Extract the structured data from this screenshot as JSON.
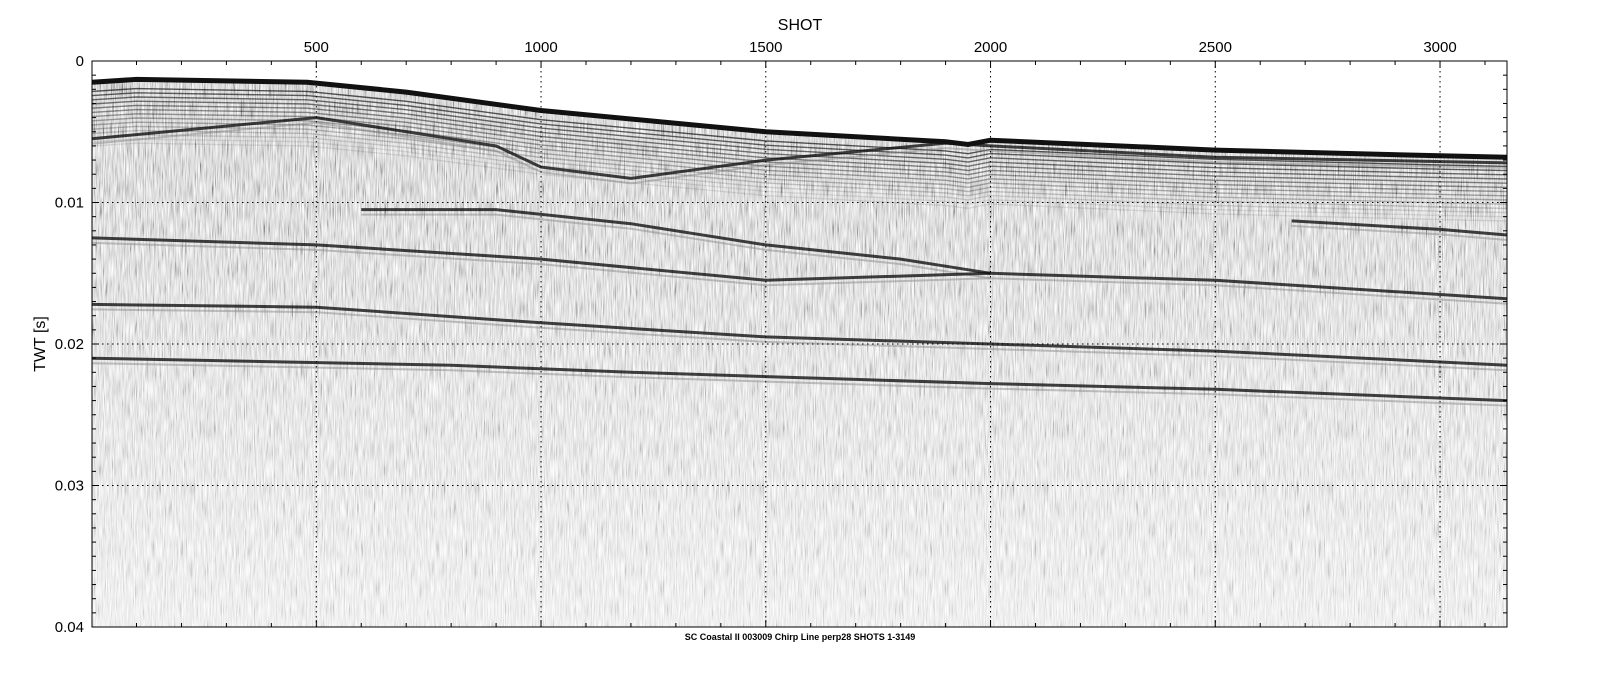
{
  "chart_data": {
    "type": "heatmap",
    "title": "",
    "xlabel": "SHOT",
    "ylabel": "TWT [s]",
    "caption": "SC Coastal II 003009 Chirp Line perp28 SHOTS 1-3149",
    "xlim": [
      1,
      3149
    ],
    "ylim": [
      0.04,
      0
    ],
    "x_ticks": [
      500,
      1000,
      1500,
      2000,
      2500,
      3000
    ],
    "x_tick_labels": [
      "500",
      "1000",
      "1500",
      "2000",
      "2500",
      "3000"
    ],
    "y_ticks": [
      0,
      0.01,
      0.02,
      0.03,
      0.04
    ],
    "y_tick_labels": [
      "0",
      "0.01",
      "0.02",
      "0.03",
      "0.04"
    ],
    "grid": true,
    "colormap": "grayscale",
    "seafloor_horizon": {
      "shot": [
        1,
        100,
        480,
        700,
        1000,
        1500,
        1900,
        1950,
        2000,
        2500,
        3000,
        3149
      ],
      "twt": [
        0.0015,
        0.0013,
        0.0015,
        0.0022,
        0.0035,
        0.005,
        0.0057,
        0.0059,
        0.0056,
        0.0063,
        0.0067,
        0.0068
      ]
    },
    "reflectors": [
      {
        "shot": [
          1,
          500,
          900,
          1000,
          1200,
          1500,
          1900,
          2000,
          2500,
          3149
        ],
        "twt": [
          0.0055,
          0.004,
          0.006,
          0.0075,
          0.0083,
          0.007,
          0.0058,
          0.006,
          0.0068,
          0.0072
        ]
      },
      {
        "shot": [
          600,
          900,
          1200,
          1500,
          1800,
          1900,
          2000
        ],
        "twt": [
          0.0105,
          0.0105,
          0.0115,
          0.013,
          0.014,
          0.0145,
          0.015
        ]
      },
      {
        "shot": [
          2670,
          3000,
          3149
        ],
        "twt": [
          0.0113,
          0.0119,
          0.0123
        ]
      },
      {
        "shot": [
          1,
          500,
          1000,
          1500,
          2000,
          2500,
          3149
        ],
        "twt": [
          0.0125,
          0.013,
          0.014,
          0.0155,
          0.015,
          0.0155,
          0.0168
        ]
      },
      {
        "shot": [
          1,
          500,
          1000,
          1500,
          2000,
          2500,
          3149
        ],
        "twt": [
          0.0172,
          0.0174,
          0.0185,
          0.0195,
          0.02,
          0.0205,
          0.0215
        ]
      },
      {
        "shot": [
          1,
          800,
          1200,
          1700,
          2000,
          2500,
          3149
        ],
        "twt": [
          0.021,
          0.0215,
          0.022,
          0.0225,
          0.0228,
          0.0232,
          0.024
        ]
      }
    ],
    "colors": {
      "background": "#ffffff",
      "strong_reflector": "#111111",
      "noise": "#8a8a8a",
      "grid": "#000000"
    }
  }
}
